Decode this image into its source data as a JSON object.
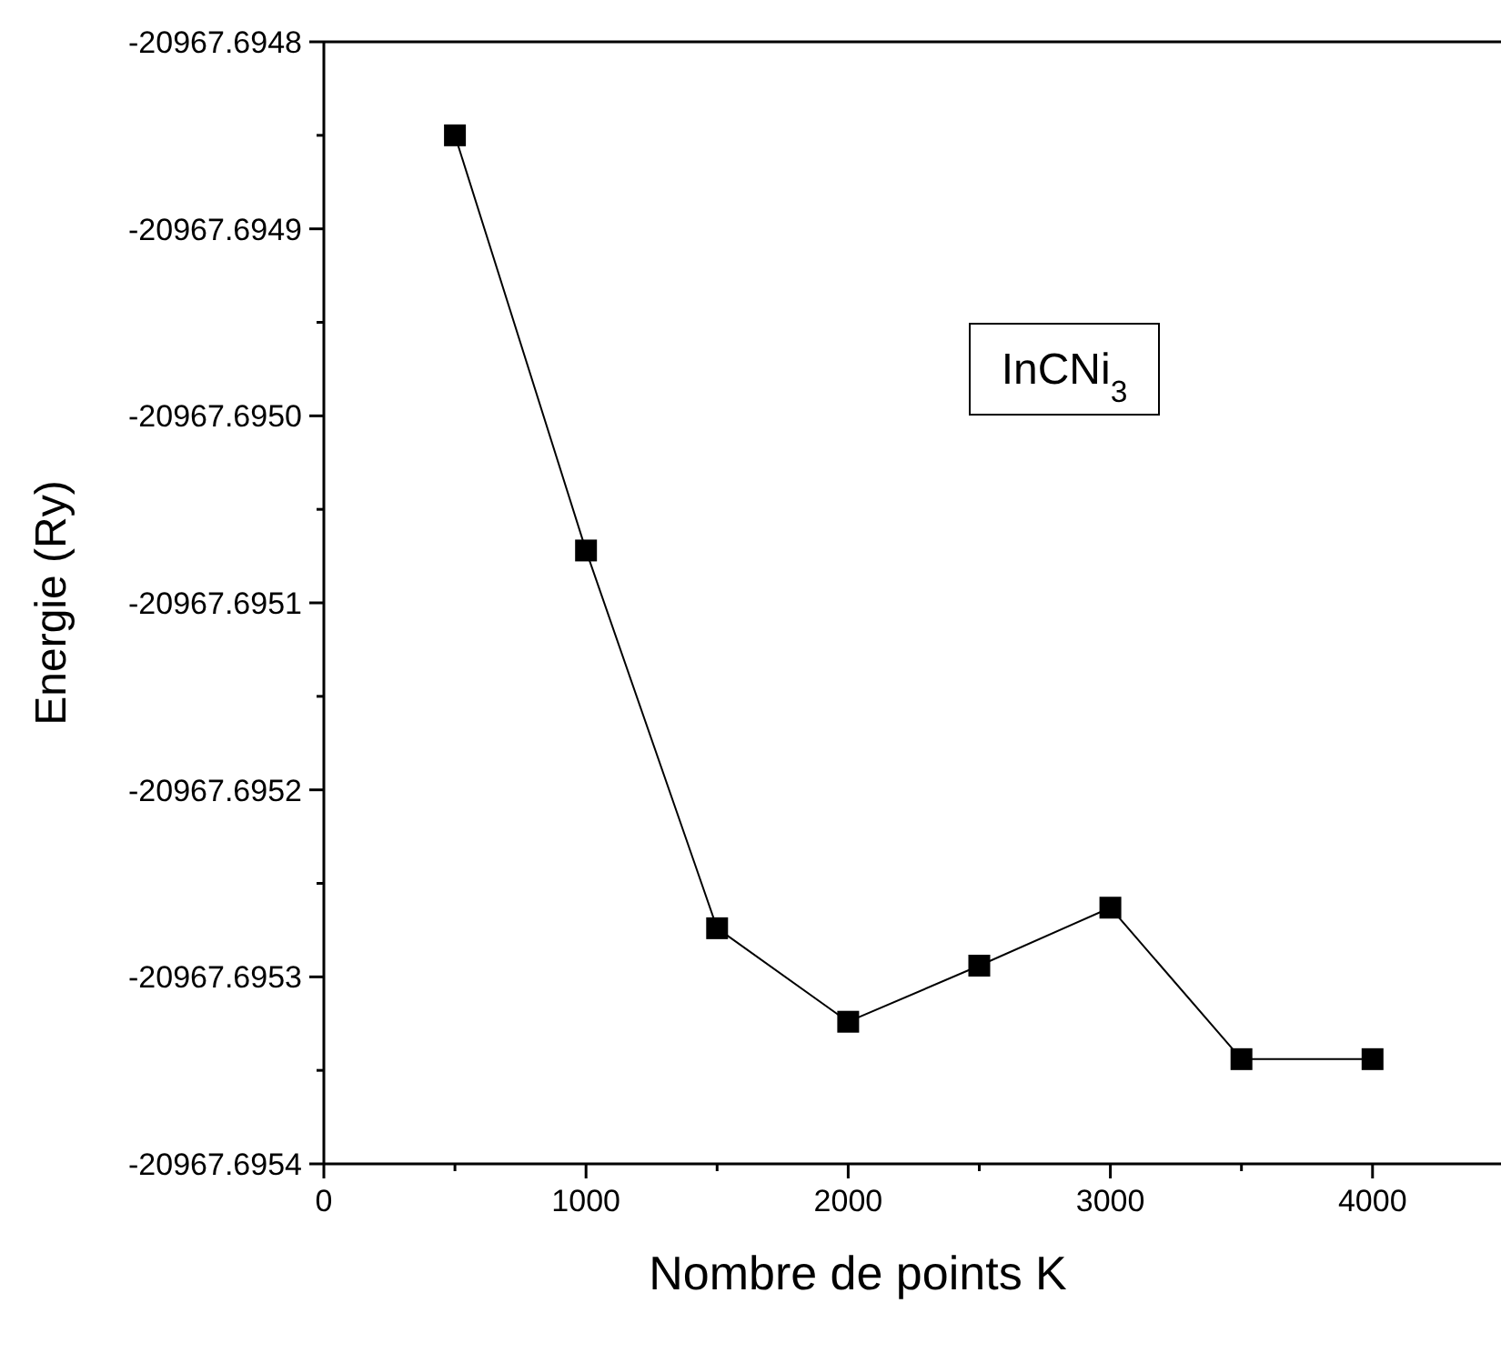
{
  "chart_data": {
    "type": "line",
    "xlabel": "Nombre de points K",
    "ylabel": "Energie (Ry)",
    "x": [
      500,
      1000,
      1500,
      2000,
      2500,
      3000,
      3500,
      4000
    ],
    "series": [
      {
        "color": "#000000",
        "values": [
          -20967.69485,
          -20967.695072,
          -20967.695274,
          -20967.695324,
          -20967.695294,
          -20967.695263,
          -20967.695344,
          -20967.695344
        ]
      }
    ],
    "xlim": [
      0,
      4490
    ],
    "xticks": [
      0,
      {
        "value": 500,
        "label": null
      },
      1000,
      {
        "value": 1500,
        "label": null
      },
      2000,
      {
        "value": 2500,
        "label": null
      },
      3000,
      {
        "value": 3500,
        "label": null
      },
      4000
    ],
    "ylim": [
      -20967.6954,
      -20967.6948
    ],
    "yticks": [
      {
        "value": -20967.6954,
        "label": "-20967.6954"
      },
      {
        "value": -20967.69535,
        "label": null
      },
      {
        "value": -20967.6953,
        "label": "-20967.6953"
      },
      {
        "value": -20967.69525,
        "label": null
      },
      {
        "value": -20967.6952,
        "label": "-20967.6952"
      },
      {
        "value": -20967.69515,
        "label": null
      },
      {
        "value": -20967.6951,
        "label": "-20967.6951"
      },
      {
        "value": -20967.69505,
        "label": null
      },
      {
        "value": -20967.695,
        "label": "-20967.6950"
      },
      {
        "value": -20967.69495,
        "label": null
      },
      {
        "value": -20967.6949,
        "label": "-20967.6949"
      },
      {
        "value": -20967.69485,
        "label": null
      },
      {
        "value": -20967.6948,
        "label": "-20967.6948"
      }
    ],
    "annotations": [
      "InCNi$_{3}$"
    ],
    "marker": "square",
    "line_style": "solid",
    "grid": false
  }
}
